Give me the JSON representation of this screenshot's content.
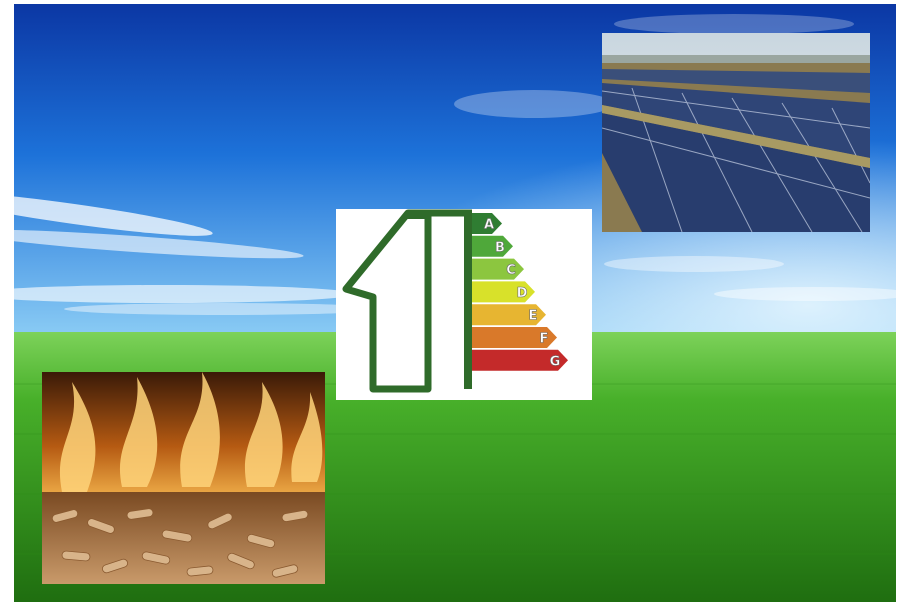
{
  "scene": {
    "description_kind": "renewable-energy collage",
    "colors": {
      "sky_top": "#0a3fae",
      "sky_mid": "#1f7fe0",
      "sky_horizon": "#7fc7f4",
      "grass_light": "#5cc43a",
      "grass_dark": "#1f7d12",
      "panel_white": "#ffffff"
    }
  },
  "energy_label": {
    "house_color": "#2f6b2a",
    "ratings": [
      {
        "letter": "A",
        "color": "#2f7d32"
      },
      {
        "letter": "B",
        "color": "#4fa83a"
      },
      {
        "letter": "C",
        "color": "#8cc63f"
      },
      {
        "letter": "D",
        "color": "#d8e12a"
      },
      {
        "letter": "E",
        "color": "#e7b531"
      },
      {
        "letter": "F",
        "color": "#d9792a"
      },
      {
        "letter": "G",
        "color": "#c42a2a"
      }
    ]
  },
  "icons": {
    "solar": "solar-panel-field",
    "energy": "energy-efficiency-house",
    "pellets": "burning-wood-pellets"
  }
}
